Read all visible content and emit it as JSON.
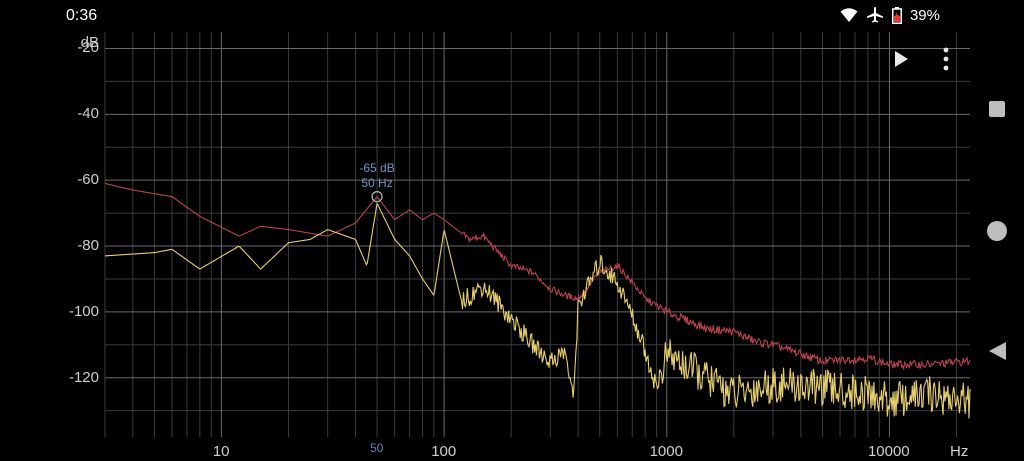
{
  "status": {
    "time": "0:36",
    "battery": "39%"
  },
  "chart_data": {
    "type": "line",
    "title": "",
    "xlabel": "Hz",
    "ylabel": "dB",
    "x_scale": "log",
    "xlim": [
      3,
      23000
    ],
    "ylim": [
      -138,
      -15
    ],
    "y_ticks": [
      "-20",
      "-40",
      "-60",
      "-80",
      "-100",
      "-120"
    ],
    "x_ticks": [
      "10",
      "100",
      "1000",
      "10000"
    ],
    "marker": {
      "db_label": "-65 dB",
      "hz_label": "50 Hz",
      "x_label": "50",
      "x": 50,
      "y": -65
    },
    "series": [
      {
        "color": "#b9424f",
        "points": [
          [
            3,
            -61
          ],
          [
            4,
            -63
          ],
          [
            6,
            -65
          ],
          [
            8,
            -71
          ],
          [
            12,
            -77
          ],
          [
            15,
            -74
          ],
          [
            20,
            -75
          ],
          [
            30,
            -77
          ],
          [
            40,
            -73
          ],
          [
            50,
            -65
          ],
          [
            60,
            -72
          ],
          [
            70,
            -69
          ],
          [
            80,
            -72
          ],
          [
            90,
            -70
          ],
          [
            100,
            -72
          ],
          [
            130,
            -78
          ],
          [
            150,
            -77
          ],
          [
            200,
            -86
          ],
          [
            250,
            -88
          ],
          [
            300,
            -93
          ],
          [
            350,
            -95
          ],
          [
            400,
            -96
          ],
          [
            500,
            -88
          ],
          [
            600,
            -86
          ],
          [
            700,
            -91
          ],
          [
            800,
            -96
          ],
          [
            1000,
            -100
          ],
          [
            1500,
            -105
          ],
          [
            2000,
            -106
          ],
          [
            2500,
            -109
          ],
          [
            3000,
            -110
          ],
          [
            5000,
            -115
          ],
          [
            8000,
            -114
          ],
          [
            10000,
            -116
          ],
          [
            15000,
            -116
          ],
          [
            22000,
            -115
          ]
        ]
      },
      {
        "color": "#e6cf6b",
        "points": [
          [
            3,
            -83
          ],
          [
            5,
            -82
          ],
          [
            6,
            -81
          ],
          [
            8,
            -87
          ],
          [
            12,
            -80
          ],
          [
            15,
            -87
          ],
          [
            20,
            -79
          ],
          [
            25,
            -78
          ],
          [
            30,
            -75
          ],
          [
            40,
            -78
          ],
          [
            45,
            -86
          ],
          [
            50,
            -67
          ],
          [
            60,
            -78
          ],
          [
            70,
            -83
          ],
          [
            80,
            -90
          ],
          [
            90,
            -95
          ],
          [
            100,
            -75
          ],
          [
            120,
            -97
          ],
          [
            150,
            -92
          ],
          [
            200,
            -102
          ],
          [
            250,
            -110
          ],
          [
            300,
            -115
          ],
          [
            350,
            -112
          ],
          [
            380,
            -127
          ],
          [
            400,
            -98
          ],
          [
            500,
            -85
          ],
          [
            600,
            -91
          ],
          [
            700,
            -101
          ],
          [
            800,
            -112
          ],
          [
            900,
            -123
          ],
          [
            1000,
            -113
          ],
          [
            1500,
            -120
          ],
          [
            2000,
            -125
          ],
          [
            3000,
            -122
          ],
          [
            5000,
            -123
          ],
          [
            8000,
            -125
          ],
          [
            10000,
            -127
          ],
          [
            15000,
            -125
          ],
          [
            22000,
            -127
          ]
        ]
      }
    ]
  },
  "icons": {
    "play": "play-icon",
    "menu": "more-vert-icon",
    "wifi": "wifi-icon",
    "airplane": "airplane-icon",
    "battery": "battery-charging-icon",
    "nav_recents": "square-icon",
    "nav_home": "circle-icon",
    "nav_back": "triangle-back-icon"
  }
}
